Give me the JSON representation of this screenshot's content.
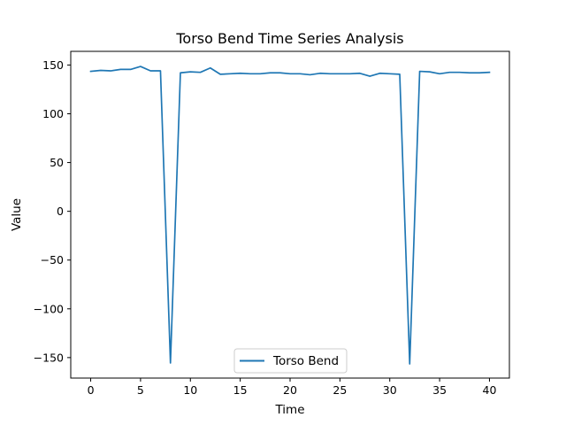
{
  "chart_data": {
    "type": "line",
    "title": "Torso Bend Time Series Analysis",
    "xlabel": "Time",
    "ylabel": "Value",
    "xlim": [
      -2,
      42
    ],
    "ylim": [
      -171,
      164
    ],
    "xticks": [
      0,
      5,
      10,
      15,
      20,
      25,
      30,
      35,
      40
    ],
    "yticks": [
      -150,
      -100,
      -50,
      0,
      50,
      100,
      150
    ],
    "grid": false,
    "legend_position": "lower center",
    "series": [
      {
        "name": "Torso Bend",
        "color": "#1f77b4",
        "x": [
          0,
          1,
          2,
          3,
          4,
          5,
          6,
          7,
          8,
          9,
          10,
          11,
          12,
          13,
          14,
          15,
          16,
          17,
          18,
          19,
          20,
          21,
          22,
          23,
          24,
          25,
          26,
          27,
          28,
          29,
          30,
          31,
          32,
          33,
          34,
          35,
          36,
          37,
          38,
          39,
          40
        ],
        "y": [
          143.5,
          144.5,
          144,
          145.5,
          145.5,
          148.5,
          144,
          144,
          -155.5,
          142,
          143,
          142.5,
          147,
          140.5,
          141,
          141.5,
          141,
          141,
          142,
          142,
          141,
          141,
          140,
          141.5,
          141,
          141,
          141,
          141.5,
          138.5,
          141.5,
          141,
          140.5,
          -156.5,
          143.5,
          143,
          141,
          142.5,
          142.5,
          142,
          142,
          142.5
        ]
      }
    ]
  }
}
